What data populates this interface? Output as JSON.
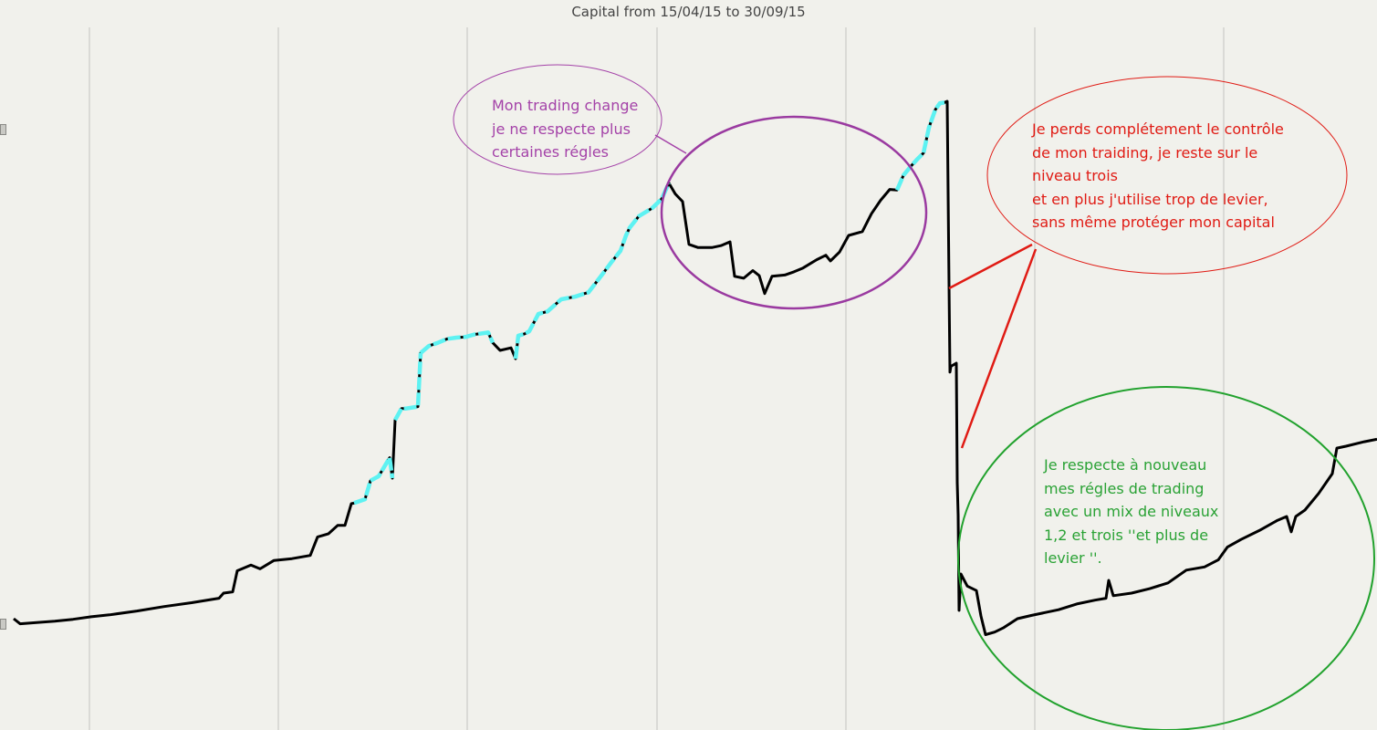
{
  "chart_data": {
    "type": "line",
    "title": "Capital from 15/04/15 to 30/09/15",
    "xlabel": "",
    "ylabel": "",
    "xlim": [
      0,
      1509
    ],
    "ylim": [
      0,
      100
    ],
    "grid": "vertical",
    "x_gridlines": [
      98,
      305,
      512,
      720,
      927,
      1134,
      1341
    ],
    "series": [
      {
        "line_color": "#000000",
        "highlight_color": "#5ef2f2",
        "points": [
          [
            15,
            12.0
          ],
          [
            22,
            11.2
          ],
          [
            40,
            11.4
          ],
          [
            60,
            11.6
          ],
          [
            80,
            11.9
          ],
          [
            100,
            12.3
          ],
          [
            120,
            12.6
          ],
          [
            150,
            13.2
          ],
          [
            180,
            13.9
          ],
          [
            210,
            14.5
          ],
          [
            240,
            15.2
          ],
          [
            245,
            16.0
          ],
          [
            255,
            16.2
          ],
          [
            260,
            19.5
          ],
          [
            275,
            20.4
          ],
          [
            285,
            19.8
          ],
          [
            300,
            21.1
          ],
          [
            320,
            21.4
          ],
          [
            340,
            21.9
          ],
          [
            348,
            24.8
          ],
          [
            360,
            25.3
          ],
          [
            370,
            26.6
          ],
          [
            378,
            26.6
          ],
          [
            385,
            30.0
          ],
          [
            388,
            30.1
          ],
          [
            400,
            30.7
          ],
          [
            406,
            33.6
          ],
          [
            415,
            34.3
          ],
          [
            427,
            37.2
          ],
          [
            430,
            34.0
          ],
          [
            433,
            43.1
          ],
          [
            440,
            44.9
          ],
          [
            445,
            44.9
          ],
          [
            458,
            45.2
          ],
          [
            461,
            53.6
          ],
          [
            470,
            54.7
          ],
          [
            480,
            55.2
          ],
          [
            490,
            55.8
          ],
          [
            500,
            56.0
          ],
          [
            510,
            56.1
          ],
          [
            520,
            56.5
          ],
          [
            535,
            56.8
          ],
          [
            540,
            55.2
          ],
          [
            548,
            54.0
          ],
          [
            560,
            54.4
          ],
          [
            565,
            52.7
          ],
          [
            568,
            56.3
          ],
          [
            575,
            56.6
          ],
          [
            580,
            57.0
          ],
          [
            590,
            59.7
          ],
          [
            600,
            60.1
          ],
          [
            615,
            62.0
          ],
          [
            630,
            62.4
          ],
          [
            645,
            63.1
          ],
          [
            660,
            65.9
          ],
          [
            670,
            67.8
          ],
          [
            680,
            69.6
          ],
          [
            686,
            72.0
          ],
          [
            690,
            73.2
          ],
          [
            700,
            75.0
          ],
          [
            715,
            76.3
          ],
          [
            725,
            77.7
          ],
          [
            733,
            80.2
          ],
          [
            740,
            78.5
          ],
          [
            748,
            77.3
          ],
          [
            755,
            70.6
          ],
          [
            765,
            70.1
          ],
          [
            780,
            70.1
          ],
          [
            790,
            70.4
          ],
          [
            800,
            71.0
          ],
          [
            805,
            65.6
          ],
          [
            815,
            65.3
          ],
          [
            825,
            66.5
          ],
          [
            832,
            65.7
          ],
          [
            838,
            62.9
          ],
          [
            846,
            65.6
          ],
          [
            860,
            65.8
          ],
          [
            870,
            66.3
          ],
          [
            880,
            66.9
          ],
          [
            895,
            68.2
          ],
          [
            905,
            68.9
          ],
          [
            910,
            68.0
          ],
          [
            920,
            69.4
          ],
          [
            930,
            72.0
          ],
          [
            945,
            72.6
          ],
          [
            955,
            75.4
          ],
          [
            965,
            77.5
          ],
          [
            975,
            79.2
          ],
          [
            983,
            79.1
          ],
          [
            990,
            81.4
          ],
          [
            998,
            82.8
          ],
          [
            1005,
            83.9
          ],
          [
            1012,
            84.9
          ],
          [
            1018,
            88.9
          ],
          [
            1025,
            91.7
          ],
          [
            1030,
            92.7
          ],
          [
            1035,
            92.8
          ],
          [
            1038,
            93.0
          ],
          [
            1040,
            64.3
          ],
          [
            1041,
            50.6
          ],
          [
            1042,
            51.5
          ],
          [
            1048,
            52.0
          ],
          [
            1049,
            33.3
          ],
          [
            1050,
            28.2
          ],
          [
            1051,
            13.3
          ],
          [
            1053,
            19.0
          ],
          [
            1060,
            17.1
          ],
          [
            1070,
            16.4
          ],
          [
            1075,
            12.4
          ],
          [
            1080,
            9.5
          ],
          [
            1090,
            9.9
          ],
          [
            1100,
            10.6
          ],
          [
            1115,
            12.0
          ],
          [
            1130,
            12.5
          ],
          [
            1160,
            13.4
          ],
          [
            1180,
            14.3
          ],
          [
            1200,
            14.9
          ],
          [
            1212,
            15.2
          ],
          [
            1215,
            18.0
          ],
          [
            1220,
            15.6
          ],
          [
            1240,
            16.0
          ],
          [
            1260,
            16.7
          ],
          [
            1280,
            17.6
          ],
          [
            1300,
            19.6
          ],
          [
            1320,
            20.1
          ],
          [
            1335,
            21.2
          ],
          [
            1345,
            23.2
          ],
          [
            1360,
            24.4
          ],
          [
            1380,
            25.8
          ],
          [
            1400,
            27.4
          ],
          [
            1410,
            28.0
          ],
          [
            1415,
            25.6
          ],
          [
            1420,
            28.0
          ],
          [
            1430,
            29.0
          ],
          [
            1445,
            31.6
          ],
          [
            1460,
            34.7
          ],
          [
            1465,
            38.7
          ],
          [
            1475,
            39.0
          ],
          [
            1495,
            39.7
          ],
          [
            1509,
            40.1
          ]
        ],
        "highlight_segments": [
          [
            388,
            406
          ],
          [
            406,
            430
          ],
          [
            433,
            461
          ],
          [
            461,
            540
          ],
          [
            565,
            733
          ],
          [
            983,
            1035
          ]
        ]
      }
    ],
    "annotations": [
      {
        "text": "Mon trading change\nje ne respecte plus\ncertaines régles",
        "color": "#a442a8"
      },
      {
        "text": "Je perds complétement le contrôle\nde mon traiding, je reste sur le\nniveau trois\net en plus j'utilise trop de levier,\nsans même protéger mon capital",
        "color": "#e01b14"
      },
      {
        "text": "Je respecte à nouveau\nmes régles de trading\navec un mix de niveaux\n1,2 et trois  ''et plus de\nlevier ''.",
        "color": "#2aa235"
      }
    ]
  }
}
